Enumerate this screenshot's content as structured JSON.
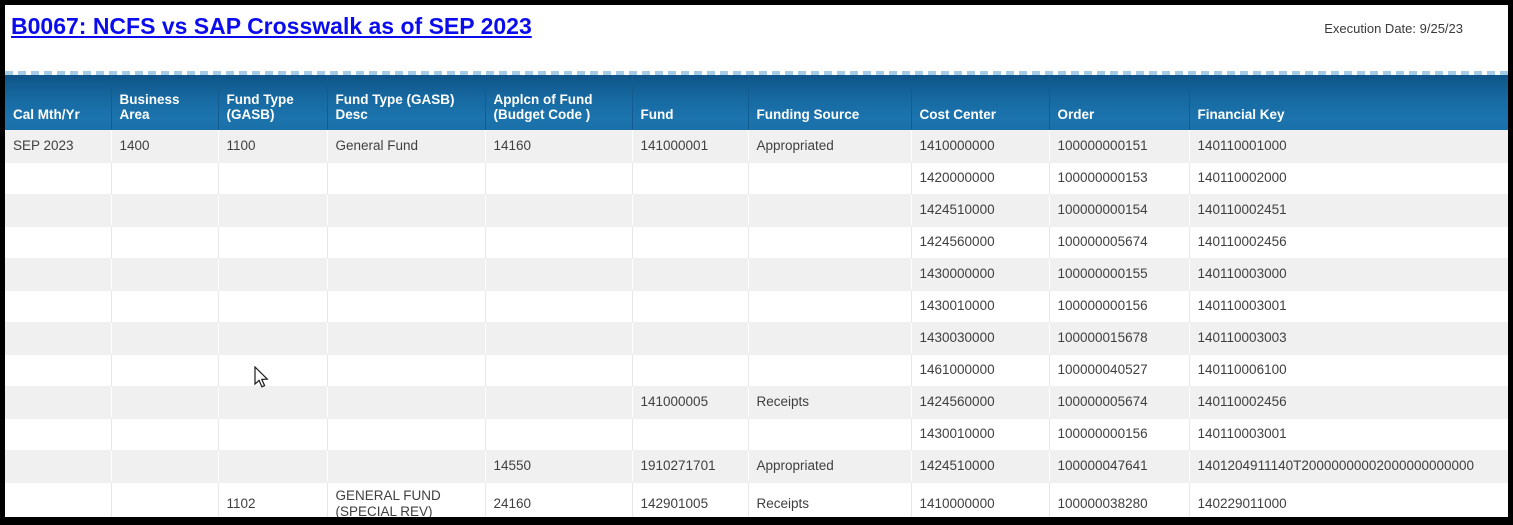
{
  "page": {
    "title": "B0067: NCFS vs SAP Crosswalk as of SEP 2023",
    "execution_date": "Execution Date: 9/25/23"
  },
  "colors": {
    "title_link_blue": "#0b0cee",
    "header_gradient_top": "#0f5487",
    "header_gradient_bottom": "#1a70a8",
    "header_text": "#ffffff",
    "row_alternate_gray": "#f0f0f0",
    "cell_text": "#3f3f3f",
    "dashed_line_blue": "#a6cbe7",
    "frame_black": "#000000"
  },
  "table": {
    "columns": [
      {
        "key": "cal-mth-yr",
        "label": "Cal Mth/Yr"
      },
      {
        "key": "business-area",
        "label": "Business Area"
      },
      {
        "key": "fund-type-gasb",
        "label": "Fund Type (GASB)"
      },
      {
        "key": "fund-type-gasb-desc",
        "label": "Fund Type (GASB) Desc"
      },
      {
        "key": "applcn-of-fund",
        "label": "Applcn of Fund (Budget Code )"
      },
      {
        "key": "fund",
        "label": "Fund"
      },
      {
        "key": "funding-source",
        "label": "Funding Source"
      },
      {
        "key": "cost-center",
        "label": "Cost Center"
      },
      {
        "key": "order",
        "label": "Order"
      },
      {
        "key": "financial-key",
        "label": "Financial Key"
      }
    ],
    "rows": [
      [
        "SEP 2023",
        "1400",
        "1100",
        "General Fund",
        "14160",
        "141000001",
        "Appropriated",
        "1410000000",
        "100000000151",
        "140110001000"
      ],
      [
        "",
        "",
        "",
        "",
        "",
        "",
        "",
        "1420000000",
        "100000000153",
        "140110002000"
      ],
      [
        "",
        "",
        "",
        "",
        "",
        "",
        "",
        "1424510000",
        "100000000154",
        "140110002451"
      ],
      [
        "",
        "",
        "",
        "",
        "",
        "",
        "",
        "1424560000",
        "100000005674",
        "140110002456"
      ],
      [
        "",
        "",
        "",
        "",
        "",
        "",
        "",
        "1430000000",
        "100000000155",
        "140110003000"
      ],
      [
        "",
        "",
        "",
        "",
        "",
        "",
        "",
        "1430010000",
        "100000000156",
        "140110003001"
      ],
      [
        "",
        "",
        "",
        "",
        "",
        "",
        "",
        "1430030000",
        "100000015678",
        "140110003003"
      ],
      [
        "",
        "",
        "",
        "",
        "",
        "",
        "",
        "1461000000",
        "100000040527",
        "140110006100"
      ],
      [
        "",
        "",
        "",
        "",
        "",
        "141000005",
        "Receipts",
        "1424560000",
        "100000005674",
        "140110002456"
      ],
      [
        "",
        "",
        "",
        "",
        "",
        "",
        "",
        "1430010000",
        "100000000156",
        "140110003001"
      ],
      [
        "",
        "",
        "",
        "",
        "14550",
        "1910271701",
        "Appropriated",
        "1424510000",
        "100000047641",
        "1401204911140T20000000002000000000000"
      ],
      [
        "",
        "",
        "1102",
        "GENERAL FUND (SPECIAL REV)",
        "24160",
        "142901005",
        "Receipts",
        "1410000000",
        "100000038280",
        "140229011000"
      ]
    ]
  },
  "cursor": {
    "icon": "arrow-pointer-icon"
  }
}
